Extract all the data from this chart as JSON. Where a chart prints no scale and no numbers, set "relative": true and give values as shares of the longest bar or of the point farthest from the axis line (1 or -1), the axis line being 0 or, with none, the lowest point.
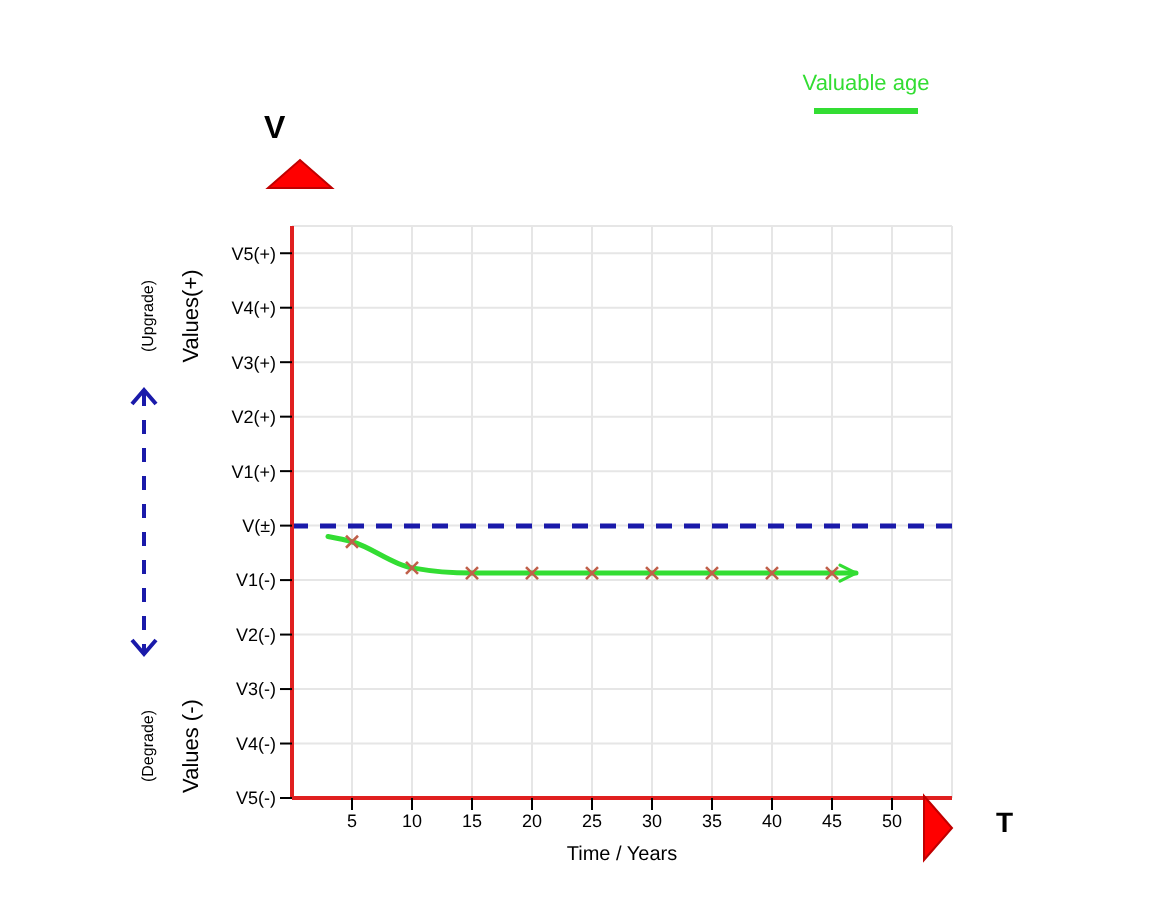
{
  "chart_data": {
    "type": "line",
    "xlabel": "Time / Years",
    "relative": true,
    "annotations": [
      "V",
      "T",
      "Values(+)",
      "(Upgrade)",
      "Values (-)",
      "(Degrade)",
      "V5(+)",
      "V4(+)",
      "V3(+)",
      "V2(+)",
      "V1(+)",
      "V(±)",
      "V1(-)",
      "V2(-)",
      "V3(-)",
      "V4(-)",
      "V5(-)"
    ],
    "series": [
      {
        "name": "Valuable age",
        "color": "#33dd33",
        "marker": "none",
        "x": [
          3,
          5,
          10,
          15,
          20,
          25,
          30,
          35,
          40,
          45,
          47
        ],
        "values": [
          1,
          0.98,
          0.88,
          0.86,
          0.86,
          0.86,
          0.86,
          0.86,
          0.86,
          0.86,
          0.86
        ]
      },
      {
        "type": "scatter",
        "color": "#c0604a",
        "marker": "cross",
        "x": [
          5,
          10,
          15,
          20,
          25,
          30,
          35,
          40,
          45
        ],
        "values": [
          0.98,
          0.88,
          0.86,
          0.86,
          0.86,
          0.86,
          0.86,
          0.86,
          0.86
        ]
      }
    ],
    "xlim": [
      0,
      55
    ],
    "xticks": [
      5,
      10,
      15,
      20,
      25,
      30,
      35,
      40,
      45,
      50
    ],
    "ref_lines": [
      {
        "axis": "y",
        "value": 1.04,
        "color": "#1a1aaa",
        "line_style": "dashed"
      }
    ],
    "grid": true,
    "legend": "top right"
  }
}
